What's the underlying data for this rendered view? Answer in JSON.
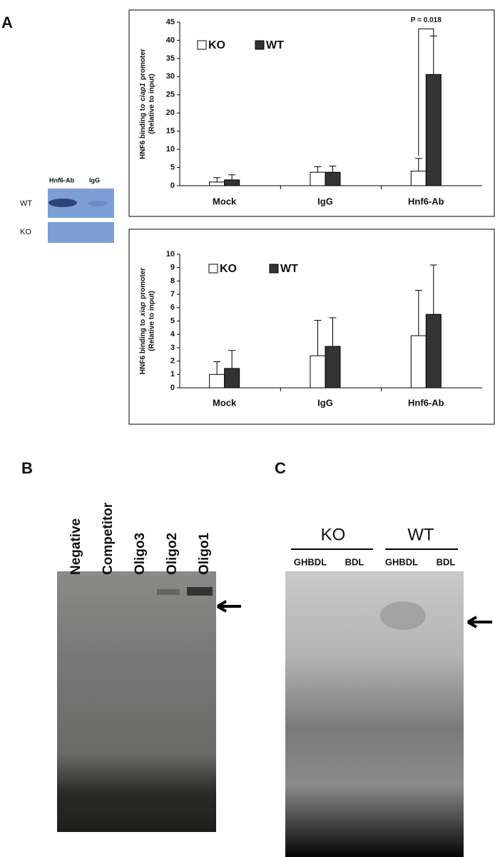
{
  "chart_data": [
    {
      "type": "bar",
      "ylabel": {
        "before": "HNF6 binding to",
        "italic": "ciap1",
        "after": "promoter"
      },
      "ylabel2": "(Relative to input)",
      "categories": [
        "Mock",
        "IgG",
        "Hnf6-Ab"
      ],
      "series": [
        {
          "name": "KO",
          "color": "#ffffff",
          "values": [
            1,
            3.7,
            4
          ],
          "errors": [
            1.2,
            1.5,
            3.5
          ]
        },
        {
          "name": "WT",
          "color": "#333333",
          "values": [
            1.6,
            3.7,
            30.6
          ],
          "errors": [
            1.4,
            1.7,
            10.6
          ]
        }
      ],
      "ylim": [
        0,
        45
      ],
      "yticks": [
        0,
        5,
        10,
        15,
        20,
        25,
        30,
        35,
        40,
        45
      ],
      "annotation": "P = 0.018"
    },
    {
      "type": "bar",
      "ylabel": {
        "before": "HNF6 binding to",
        "italic": "xiap",
        "after": "promoter"
      },
      "ylabel2": "(Relative to input)",
      "categories": [
        "Mock",
        "IgG",
        "Hnf6-Ab"
      ],
      "series": [
        {
          "name": "KO",
          "color": "#ffffff",
          "values": [
            1,
            2.4,
            3.9
          ],
          "errors": [
            0.95,
            2.65,
            3.4
          ]
        },
        {
          "name": "WT",
          "color": "#333333",
          "values": [
            1.45,
            3.1,
            5.5
          ],
          "errors": [
            1.35,
            2.15,
            3.7
          ]
        }
      ],
      "ylim": [
        0,
        10
      ],
      "yticks": [
        0,
        1,
        2,
        3,
        4,
        5,
        6,
        7,
        8,
        9,
        10
      ]
    }
  ],
  "panels": {
    "a": "A",
    "b": "B",
    "c": "C"
  },
  "blot": {
    "lanes": [
      "Hnf6-Ab",
      "IgG"
    ],
    "rows": [
      "WT",
      "KO"
    ]
  },
  "gel_b": {
    "lanes": [
      "Negative",
      "Competitor",
      "Oligo3",
      "Oligo2",
      "Oligo1"
    ]
  },
  "gel_c": {
    "groups": [
      "KO",
      "WT"
    ],
    "lanes": [
      "GHBDL",
      "BDL",
      "GHBDL",
      "BDL"
    ]
  }
}
